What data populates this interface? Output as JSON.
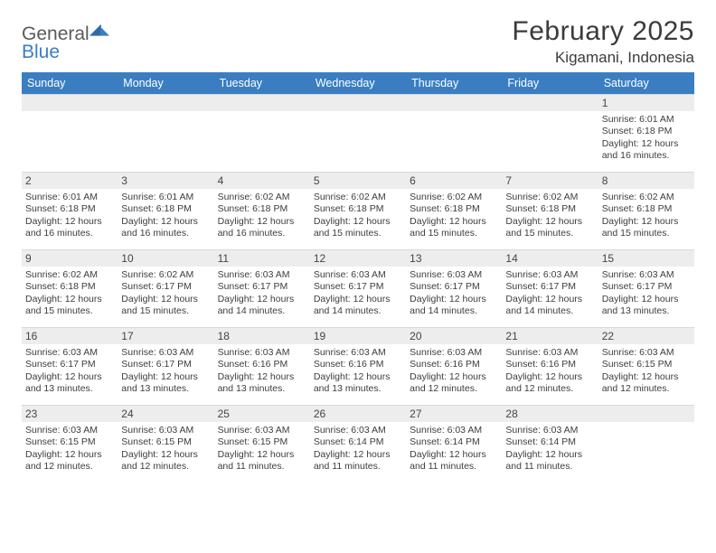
{
  "logo": {
    "general": "General",
    "blue": "Blue"
  },
  "title": {
    "month": "February 2025",
    "location": "Kigamani, Indonesia"
  },
  "colors": {
    "header_bg": "#3a7ec1",
    "header_text": "#ffffff",
    "daybar_bg": "#ededed",
    "body_text": "#3d3d3d",
    "page_bg": "#ffffff"
  },
  "weekdays": [
    "Sunday",
    "Monday",
    "Tuesday",
    "Wednesday",
    "Thursday",
    "Friday",
    "Saturday"
  ],
  "calendar": {
    "rows": 5,
    "cols": 7,
    "first_weekday_index": 6,
    "days": [
      {
        "n": 1,
        "sunrise": "6:01 AM",
        "sunset": "6:18 PM",
        "daylight": "12 hours and 16 minutes."
      },
      {
        "n": 2,
        "sunrise": "6:01 AM",
        "sunset": "6:18 PM",
        "daylight": "12 hours and 16 minutes."
      },
      {
        "n": 3,
        "sunrise": "6:01 AM",
        "sunset": "6:18 PM",
        "daylight": "12 hours and 16 minutes."
      },
      {
        "n": 4,
        "sunrise": "6:02 AM",
        "sunset": "6:18 PM",
        "daylight": "12 hours and 16 minutes."
      },
      {
        "n": 5,
        "sunrise": "6:02 AM",
        "sunset": "6:18 PM",
        "daylight": "12 hours and 15 minutes."
      },
      {
        "n": 6,
        "sunrise": "6:02 AM",
        "sunset": "6:18 PM",
        "daylight": "12 hours and 15 minutes."
      },
      {
        "n": 7,
        "sunrise": "6:02 AM",
        "sunset": "6:18 PM",
        "daylight": "12 hours and 15 minutes."
      },
      {
        "n": 8,
        "sunrise": "6:02 AM",
        "sunset": "6:18 PM",
        "daylight": "12 hours and 15 minutes."
      },
      {
        "n": 9,
        "sunrise": "6:02 AM",
        "sunset": "6:18 PM",
        "daylight": "12 hours and 15 minutes."
      },
      {
        "n": 10,
        "sunrise": "6:02 AM",
        "sunset": "6:17 PM",
        "daylight": "12 hours and 15 minutes."
      },
      {
        "n": 11,
        "sunrise": "6:03 AM",
        "sunset": "6:17 PM",
        "daylight": "12 hours and 14 minutes."
      },
      {
        "n": 12,
        "sunrise": "6:03 AM",
        "sunset": "6:17 PM",
        "daylight": "12 hours and 14 minutes."
      },
      {
        "n": 13,
        "sunrise": "6:03 AM",
        "sunset": "6:17 PM",
        "daylight": "12 hours and 14 minutes."
      },
      {
        "n": 14,
        "sunrise": "6:03 AM",
        "sunset": "6:17 PM",
        "daylight": "12 hours and 14 minutes."
      },
      {
        "n": 15,
        "sunrise": "6:03 AM",
        "sunset": "6:17 PM",
        "daylight": "12 hours and 13 minutes."
      },
      {
        "n": 16,
        "sunrise": "6:03 AM",
        "sunset": "6:17 PM",
        "daylight": "12 hours and 13 minutes."
      },
      {
        "n": 17,
        "sunrise": "6:03 AM",
        "sunset": "6:17 PM",
        "daylight": "12 hours and 13 minutes."
      },
      {
        "n": 18,
        "sunrise": "6:03 AM",
        "sunset": "6:16 PM",
        "daylight": "12 hours and 13 minutes."
      },
      {
        "n": 19,
        "sunrise": "6:03 AM",
        "sunset": "6:16 PM",
        "daylight": "12 hours and 13 minutes."
      },
      {
        "n": 20,
        "sunrise": "6:03 AM",
        "sunset": "6:16 PM",
        "daylight": "12 hours and 12 minutes."
      },
      {
        "n": 21,
        "sunrise": "6:03 AM",
        "sunset": "6:16 PM",
        "daylight": "12 hours and 12 minutes."
      },
      {
        "n": 22,
        "sunrise": "6:03 AM",
        "sunset": "6:15 PM",
        "daylight": "12 hours and 12 minutes."
      },
      {
        "n": 23,
        "sunrise": "6:03 AM",
        "sunset": "6:15 PM",
        "daylight": "12 hours and 12 minutes."
      },
      {
        "n": 24,
        "sunrise": "6:03 AM",
        "sunset": "6:15 PM",
        "daylight": "12 hours and 12 minutes."
      },
      {
        "n": 25,
        "sunrise": "6:03 AM",
        "sunset": "6:15 PM",
        "daylight": "12 hours and 11 minutes."
      },
      {
        "n": 26,
        "sunrise": "6:03 AM",
        "sunset": "6:14 PM",
        "daylight": "12 hours and 11 minutes."
      },
      {
        "n": 27,
        "sunrise": "6:03 AM",
        "sunset": "6:14 PM",
        "daylight": "12 hours and 11 minutes."
      },
      {
        "n": 28,
        "sunrise": "6:03 AM",
        "sunset": "6:14 PM",
        "daylight": "12 hours and 11 minutes."
      }
    ]
  },
  "labels": {
    "sunrise": "Sunrise:",
    "sunset": "Sunset:",
    "daylight": "Daylight:"
  }
}
